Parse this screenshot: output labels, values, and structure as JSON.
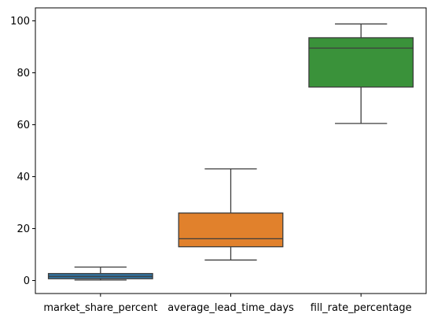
{
  "chart_data": {
    "type": "boxplot",
    "categories": [
      "market_share_percent",
      "average_lead_time_days",
      "fill_rate_percentage"
    ],
    "boxes": [
      {
        "category": "market_share_percent",
        "whisker_low": 0.2,
        "q1": 0.7,
        "median": 1.6,
        "q3": 2.7,
        "whisker_high": 5.2,
        "color": "#3274a1"
      },
      {
        "category": "average_lead_time_days",
        "whisker_low": 7.9,
        "q1": 13.0,
        "median": 16.1,
        "q3": 26.0,
        "whisker_high": 43.0,
        "color": "#e1812c"
      },
      {
        "category": "fill_rate_percentage",
        "whisker_low": 60.5,
        "q1": 74.5,
        "median": 89.5,
        "q3": 93.5,
        "whisker_high": 98.8,
        "color": "#3a923a"
      }
    ],
    "yticks": [
      0,
      20,
      40,
      60,
      80,
      100
    ],
    "ylim": [
      -5,
      105
    ],
    "title": "",
    "xlabel": "",
    "ylabel": "",
    "grid": false
  }
}
